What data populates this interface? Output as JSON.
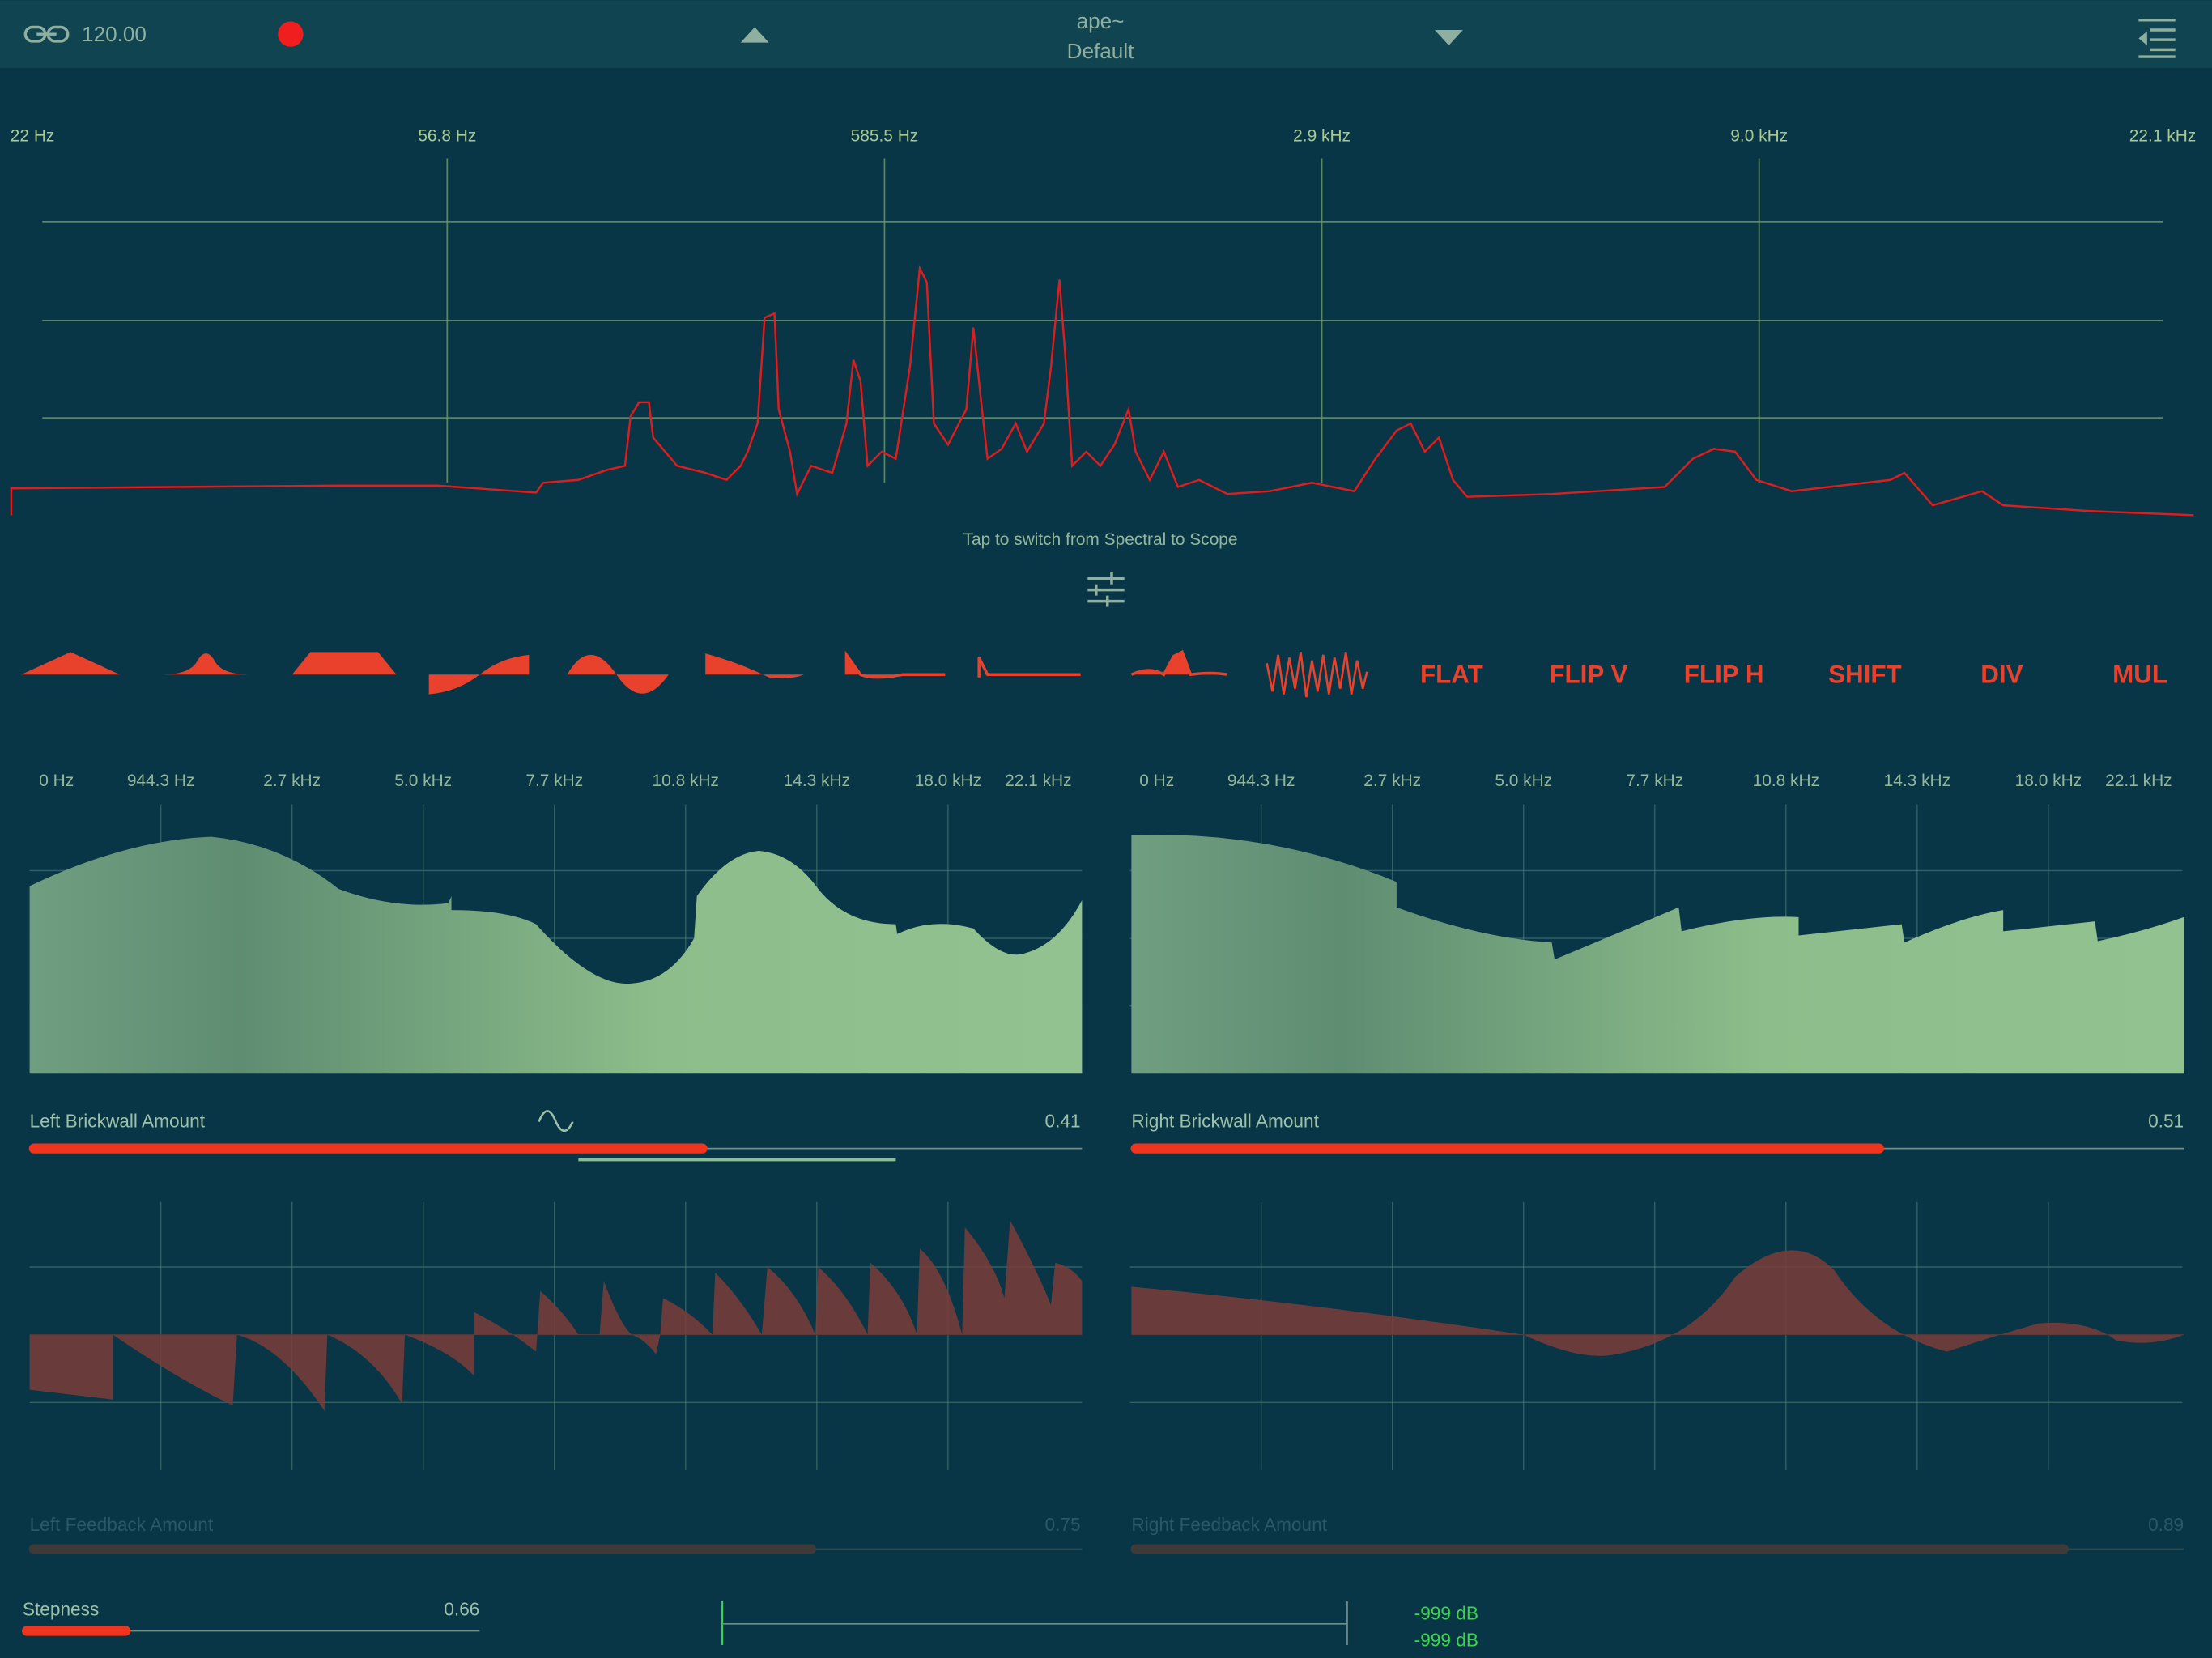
{
  "header": {
    "tempo": "120.00",
    "preset_group": "ape~",
    "preset": "Default"
  },
  "spectrum": {
    "freq_labels": [
      "22 Hz",
      "56.8 Hz",
      "585.5 Hz",
      "2.9 kHz",
      "9.0 kHz",
      "22.1 kHz"
    ],
    "hint": "Tap to switch from Spectral to Scope"
  },
  "buttons": [
    "FLAT",
    "FLIP V",
    "FLIP H",
    "SHIFT",
    "DIV",
    "MUL"
  ],
  "left_panel": {
    "freq_labels": [
      "0 Hz",
      "944.3 Hz",
      "2.7 kHz",
      "5.0 kHz",
      "7.7 kHz",
      "10.8 kHz",
      "14.3 kHz",
      "18.0 kHz",
      "22.1 kHz"
    ],
    "brickwall": {
      "label": "Left Brickwall Amount",
      "value": 0.41
    },
    "feedback": {
      "label": "Left Feedback Amount",
      "value": 0.75
    }
  },
  "right_panel": {
    "freq_labels": [
      "0 Hz",
      "944.3 Hz",
      "2.7 kHz",
      "5.0 kHz",
      "7.7 kHz",
      "10.8 kHz",
      "14.3 kHz",
      "18.0 kHz",
      "22.1 kHz"
    ],
    "brickwall": {
      "label": "Right Brickwall Amount",
      "value": 0.51
    },
    "feedback": {
      "label": "Right Feedback Amount",
      "value": 0.89
    }
  },
  "stepness": {
    "label": "Stepness",
    "value": 0.66
  },
  "meter": {
    "left": "-999 dB",
    "right": "-999 dB"
  }
}
